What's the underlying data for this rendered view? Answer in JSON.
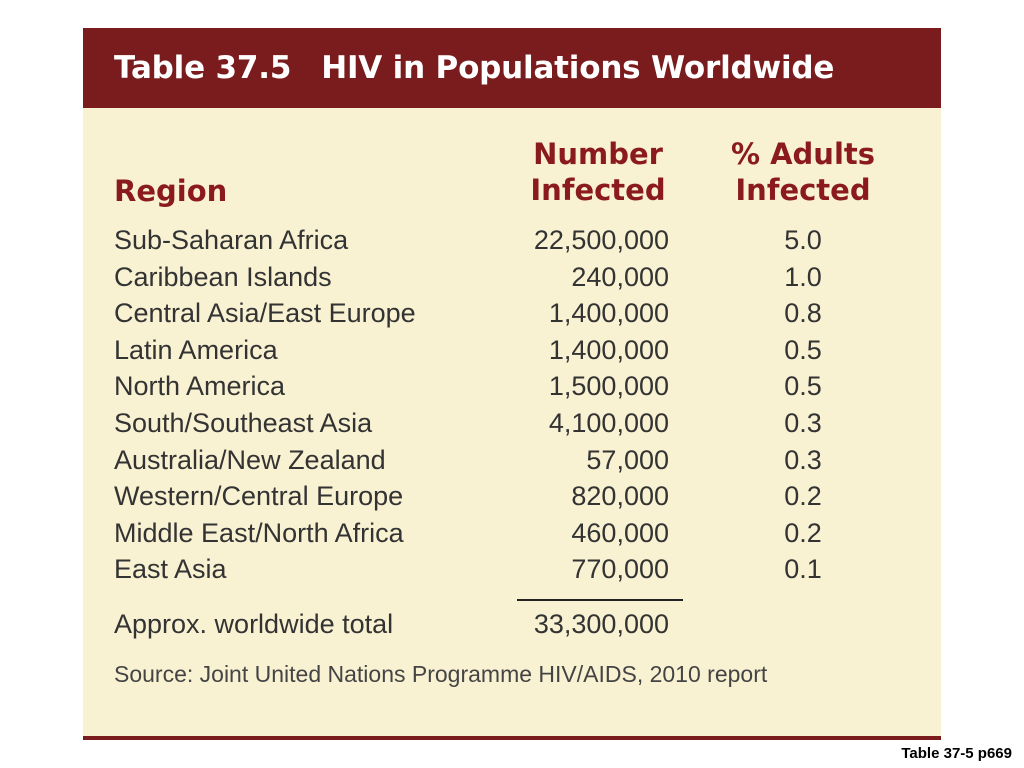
{
  "table": {
    "title_number": "Table 37.5",
    "title_text": "HIV in Populations Worldwide",
    "headers": {
      "region": "Region",
      "number_line1": "Number",
      "number_line2": "Infected",
      "pct_line1": "% Adults",
      "pct_line2": "Infected"
    },
    "rows": [
      {
        "region": "Sub-Saharan Africa",
        "number": "22,500,000",
        "pct": "5.0"
      },
      {
        "region": "Caribbean Islands",
        "number": "240,000",
        "pct": "1.0"
      },
      {
        "region": "Central Asia/East Europe",
        "number": "1,400,000",
        "pct": "0.8"
      },
      {
        "region": "Latin America",
        "number": "1,400,000",
        "pct": "0.5"
      },
      {
        "region": "North America",
        "number": "1,500,000",
        "pct": "0.5"
      },
      {
        "region": "South/Southeast Asia",
        "number": "4,100,000",
        "pct": "0.3"
      },
      {
        "region": "Australia/New Zealand",
        "number": "57,000",
        "pct": "0.3"
      },
      {
        "region": "Western/Central Europe",
        "number": "820,000",
        "pct": "0.2"
      },
      {
        "region": "Middle East/North Africa",
        "number": "460,000",
        "pct": "0.2"
      },
      {
        "region": "East Asia",
        "number": "770,000",
        "pct": "0.1"
      }
    ],
    "total": {
      "label": "Approx. worldwide total",
      "number": "33,300,000"
    },
    "source": "Source: Joint United Nations Programme HIV/AIDS, 2010 report"
  },
  "caption": "Table 37-5 p669",
  "colors": {
    "title_bar": "#7a1c1e",
    "header_text": "#8b1a1d",
    "background": "#f8f2d2",
    "body_text": "#333333"
  }
}
